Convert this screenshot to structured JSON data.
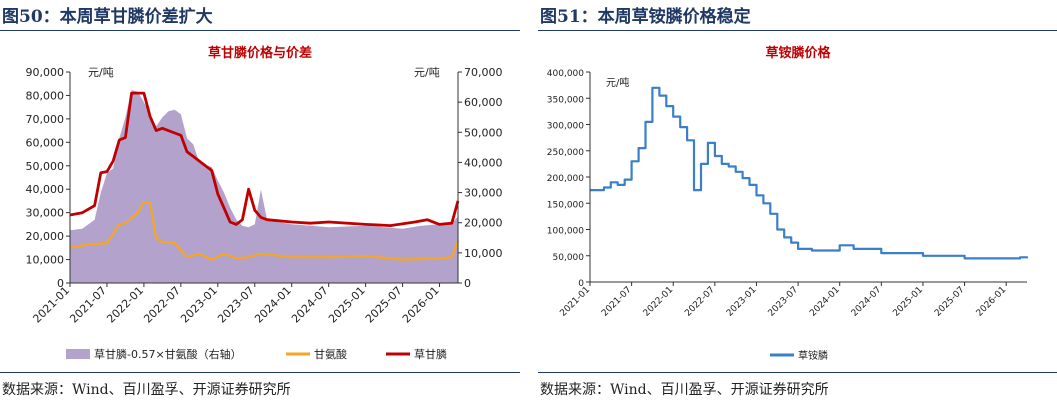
{
  "left_panel": {
    "figure_title": "图50：本周草甘膦价差扩大",
    "source": "数据来源：Wind、百川盈孚、开源证券研究所"
  },
  "right_panel": {
    "figure_title": "图51：本周草铵膦价格稳定",
    "source": "数据来源：Wind、百川盈孚、开源证券研究所"
  },
  "chart_data": [
    {
      "type": "line",
      "title": "草甘膦价格与价差",
      "x_ticks": [
        "2021-01",
        "2021-07",
        "2022-01",
        "2022-07",
        "2023-01",
        "2023-07",
        "2024-01",
        "2024-07",
        "2025-01",
        "2025-07",
        "2026-01"
      ],
      "x_range": [
        "2021-01",
        "2026-04"
      ],
      "y_left_unit": "元/吨",
      "y_right_unit": "元/吨",
      "y_left_range": [
        0,
        90000
      ],
      "y_left_ticks": [
        "0",
        "10,000",
        "20,000",
        "30,000",
        "40,000",
        "50,000",
        "60,000",
        "70,000",
        "80,000",
        "90,000"
      ],
      "y_right_range": [
        0,
        70000
      ],
      "y_right_ticks": [
        "0",
        "10,000",
        "20,000",
        "30,000",
        "40,000",
        "50,000",
        "60,000",
        "70,000"
      ],
      "grid": false,
      "legend_position": "bottom",
      "colors": {
        "spread": "#b3a3cc",
        "glycine": "#f5a623",
        "glyphosate": "#c00000"
      },
      "series": [
        {
          "name": "草甘膦-0.57×甘氨酸（右轴）",
          "type": "area",
          "axis": "right",
          "x": [
            "2021-01",
            "2021-03",
            "2021-05",
            "2021-06",
            "2021-07",
            "2021-08",
            "2021-09",
            "2021-10",
            "2021-11",
            "2021-12",
            "2022-01",
            "2022-02",
            "2022-03",
            "2022-04",
            "2022-05",
            "2022-06",
            "2022-07",
            "2022-08",
            "2022-09",
            "2022-10",
            "2022-11",
            "2022-12",
            "2023-01",
            "2023-02",
            "2023-03",
            "2023-04",
            "2023-05",
            "2023-06",
            "2023-07",
            "2023-08",
            "2023-09",
            "2023-10",
            "2024-01",
            "2024-07",
            "2025-01",
            "2025-04",
            "2025-07",
            "2025-10",
            "2026-01",
            "2026-03",
            "2026-04"
          ],
          "values": [
            17500,
            18000,
            21000,
            30000,
            36500,
            38000,
            48000,
            55000,
            64000,
            63500,
            60000,
            56000,
            52000,
            55000,
            57000,
            57500,
            56000,
            48000,
            46000,
            40000,
            39000,
            38500,
            34000,
            30000,
            25000,
            21000,
            19000,
            18500,
            19500,
            31000,
            21000,
            20500,
            19500,
            18500,
            19000,
            18500,
            18000,
            19000,
            19500,
            20000,
            22000
          ]
        },
        {
          "name": "甘氨酸",
          "type": "line",
          "axis": "left",
          "x": [
            "2021-01",
            "2021-04",
            "2021-07",
            "2021-09",
            "2021-10",
            "2021-12",
            "2022-01",
            "2022-02",
            "2022-03",
            "2022-04",
            "2022-06",
            "2022-08",
            "2022-10",
            "2022-12",
            "2023-02",
            "2023-04",
            "2023-06",
            "2023-08",
            "2024-01",
            "2024-07",
            "2025-01",
            "2025-07",
            "2026-01",
            "2026-03",
            "2026-04"
          ],
          "values": [
            15000,
            16500,
            17000,
            25000,
            25500,
            30000,
            34500,
            34000,
            19000,
            17500,
            17000,
            11000,
            12500,
            10000,
            12500,
            10500,
            11000,
            12500,
            11000,
            11000,
            11500,
            10000,
            10500,
            11000,
            18000
          ]
        },
        {
          "name": "草甘膦",
          "type": "line",
          "axis": "left",
          "x": [
            "2021-01",
            "2021-03",
            "2021-05",
            "2021-06",
            "2021-07",
            "2021-08",
            "2021-09",
            "2021-10",
            "2021-11",
            "2021-12",
            "2022-01",
            "2022-02",
            "2022-03",
            "2022-04",
            "2022-06",
            "2022-07",
            "2022-08",
            "2022-09",
            "2022-11",
            "2022-12",
            "2023-01",
            "2023-02",
            "2023-03",
            "2023-04",
            "2023-05",
            "2023-06",
            "2023-07",
            "2023-08",
            "2023-09",
            "2024-01",
            "2024-04",
            "2024-07",
            "2025-01",
            "2025-05",
            "2025-09",
            "2025-11",
            "2026-01",
            "2026-03",
            "2026-04"
          ],
          "values": [
            29000,
            30000,
            33000,
            47000,
            47500,
            52000,
            61000,
            62000,
            81000,
            81000,
            81000,
            71000,
            65000,
            66000,
            64000,
            63000,
            56000,
            54000,
            50000,
            48000,
            38000,
            32000,
            26000,
            25000,
            27000,
            40000,
            31000,
            28000,
            27000,
            26000,
            25500,
            26000,
            25000,
            24500,
            26000,
            27000,
            25000,
            25500,
            35000
          ]
        }
      ]
    },
    {
      "type": "line",
      "title": "草铵膦价格",
      "x_ticks": [
        "2021-01",
        "2021-07",
        "2022-01",
        "2022-07",
        "2023-01",
        "2023-07",
        "2024-01",
        "2024-07",
        "2025-01",
        "2025-07",
        "2026-01"
      ],
      "x_range": [
        "2021-01",
        "2026-04"
      ],
      "y_unit": "元/吨",
      "y_range": [
        0,
        400000
      ],
      "y_ticks": [
        "0",
        "50,000",
        "100,000",
        "150,000",
        "200,000",
        "250,000",
        "300,000",
        "350,000",
        "400,000"
      ],
      "grid": false,
      "legend_position": "bottom",
      "colors": {
        "glufosinate": "#3a7fc8"
      },
      "series": [
        {
          "name": "草铵膦",
          "type": "line",
          "x": [
            "2021-01",
            "2021-03",
            "2021-04",
            "2021-05",
            "2021-06",
            "2021-07",
            "2021-08",
            "2021-09",
            "2021-10",
            "2021-11",
            "2021-12",
            "2022-01",
            "2022-02",
            "2022-03",
            "2022-04",
            "2022-05",
            "2022-06",
            "2022-07",
            "2022-08",
            "2022-09",
            "2022-10",
            "2022-11",
            "2022-12",
            "2023-01",
            "2023-02",
            "2023-03",
            "2023-04",
            "2023-05",
            "2023-06",
            "2023-07",
            "2023-09",
            "2023-12",
            "2024-01",
            "2024-03",
            "2024-07",
            "2025-01",
            "2025-07",
            "2026-01",
            "2026-03",
            "2026-04"
          ],
          "values": [
            175000,
            180000,
            190000,
            185000,
            195000,
            230000,
            255000,
            305000,
            370000,
            355000,
            335000,
            315000,
            295000,
            270000,
            175000,
            225000,
            265000,
            240000,
            225000,
            220000,
            210000,
            198000,
            185000,
            165000,
            150000,
            130000,
            100000,
            85000,
            75000,
            63000,
            60000,
            60000,
            70000,
            63000,
            55000,
            50000,
            45000,
            45000,
            47000,
            45000
          ]
        }
      ]
    }
  ]
}
